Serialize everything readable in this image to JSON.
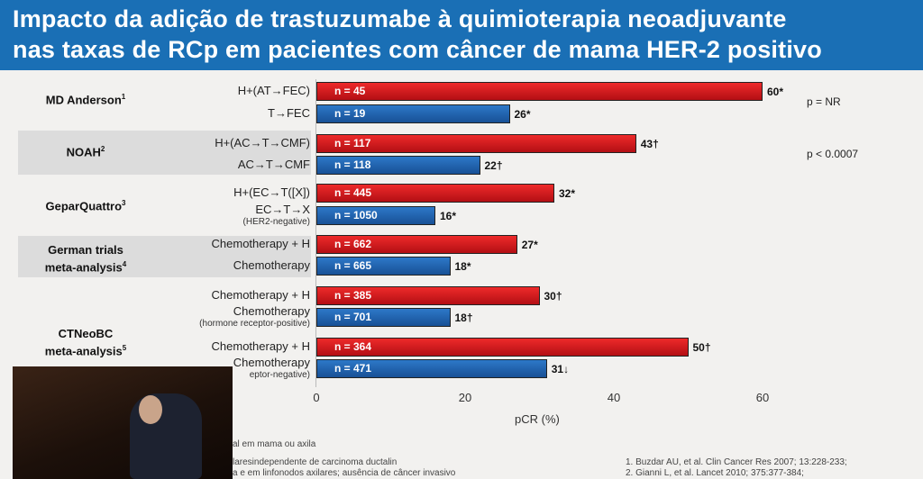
{
  "title": {
    "line1": "Impacto da adição de trastuzumabe à quimioterapia neoadjuvante",
    "line2": "nas taxas de RCp em pacientes  com câncer de mama HER-2 positivo"
  },
  "chart_data": {
    "type": "bar",
    "orientation": "horizontal",
    "xlabel": "pCR (%)",
    "xlim": [
      0,
      60
    ],
    "xticks": [
      "0",
      "20",
      "40",
      "60"
    ],
    "groups": [
      {
        "trial": "MD Anderson",
        "ref": "1",
        "arms": [
          {
            "label": "H+(AT→FEC)",
            "n": "n = 45",
            "value": 60,
            "value_label": "60*",
            "color": "red"
          },
          {
            "label": "T→FEC",
            "n": "n = 19",
            "value": 26,
            "value_label": "26*",
            "color": "blue"
          }
        ],
        "p": "p = NR"
      },
      {
        "trial": "NOAH",
        "ref": "2",
        "arms": [
          {
            "label": "H+(AC→T→CMF)",
            "n": "n = 117",
            "value": 43,
            "value_label": "43†",
            "color": "red"
          },
          {
            "label": "AC→T→CMF",
            "n": "n = 118",
            "value": 22,
            "value_label": "22†",
            "color": "blue"
          }
        ],
        "p": "p < 0.0007"
      },
      {
        "trial": "GeparQuattro",
        "ref": "3",
        "arms": [
          {
            "label": "H+(EC→T([X])",
            "n": "n = 445",
            "value": 32,
            "value_label": "32*",
            "color": "red"
          },
          {
            "label": "EC→T→X",
            "sublabel": "(HER2-negative)",
            "n": "n = 1050",
            "value": 16,
            "value_label": "16*",
            "color": "blue"
          }
        ]
      },
      {
        "trial": "German trials",
        "trial2": "meta-analysis",
        "ref": "4",
        "arms": [
          {
            "label": "Chemotherapy + H",
            "n": "n = 662",
            "value": 27,
            "value_label": "27*",
            "color": "red"
          },
          {
            "label": "Chemotherapy",
            "n": "n = 665",
            "value": 18,
            "value_label": "18*",
            "color": "blue"
          }
        ]
      },
      {
        "trial": "CTNeoBC",
        "trial2": "meta-analysis",
        "ref": "5",
        "arms": [
          {
            "label": "Chemotherapy + H",
            "n": "n = 385",
            "value": 30,
            "value_label": "30†",
            "color": "red"
          },
          {
            "label": "Chemotherapy",
            "sublabel": "(hormone receptor-positive)",
            "n": "n = 701",
            "value": 18,
            "value_label": "18†",
            "color": "blue"
          },
          {
            "label": "Chemotherapy + H",
            "n": "n = 364",
            "value": 50,
            "value_label": "50†",
            "color": "red"
          },
          {
            "label": "Chemotherapy",
            "sublabel": "eptor-negative)",
            "n": "n = 471",
            "value": 31,
            "value_label": "31↓",
            "color": "blue"
          }
        ]
      }
    ]
  },
  "footnotes": {
    "f1": "al em mama ou axila",
    "f2": "laresindependente de carcinoma ductalin",
    "f3": "a e em linfonodos axilares; ausência de câncer invasivo",
    "r1": "1. Buzdar AU, et al. Clin Cancer Res 2007; 13:228-233;",
    "r2": "2. Gianni L, et al. Lancet 2010; 375:377-384;"
  }
}
